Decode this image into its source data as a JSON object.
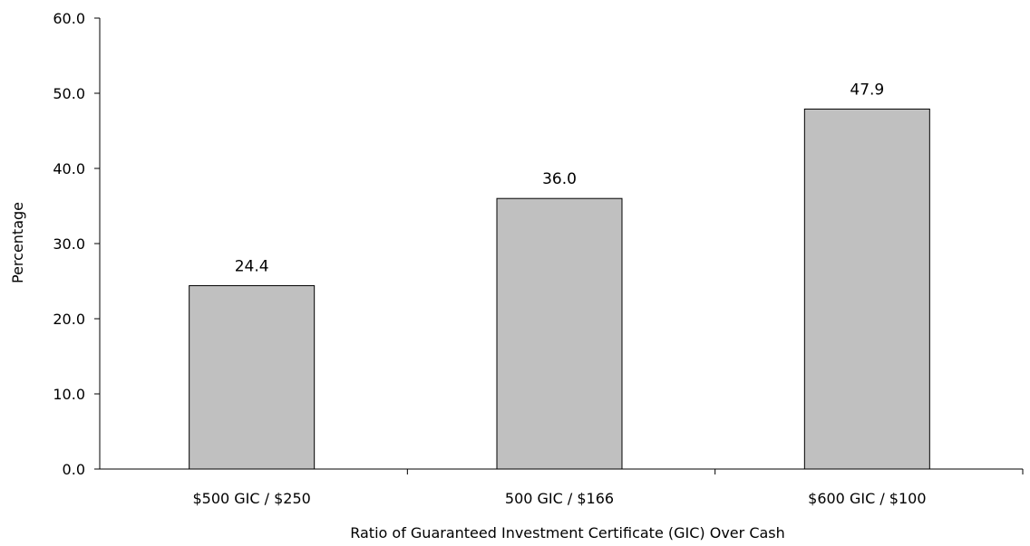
{
  "chart_data": {
    "type": "bar",
    "categories": [
      "$500 GIC / $250",
      "500 GIC / $166",
      "$600 GIC / $100"
    ],
    "values": [
      24.4,
      36.0,
      47.9
    ],
    "value_labels": [
      "24.4",
      "36.0",
      "47.9"
    ],
    "xlabel": "Ratio of Guaranteed Investment Certificate (GIC) Over Cash",
    "ylabel": "Percentage",
    "ylim": [
      0,
      60
    ],
    "yticks": [
      0,
      10,
      20,
      30,
      40,
      50,
      60
    ],
    "ytick_labels": [
      "0.0",
      "10.0",
      "20.0",
      "30.0",
      "40.0",
      "50.0",
      "60.0"
    ],
    "grid": false,
    "legend": "none",
    "bar_color": "#c0c0c0"
  }
}
